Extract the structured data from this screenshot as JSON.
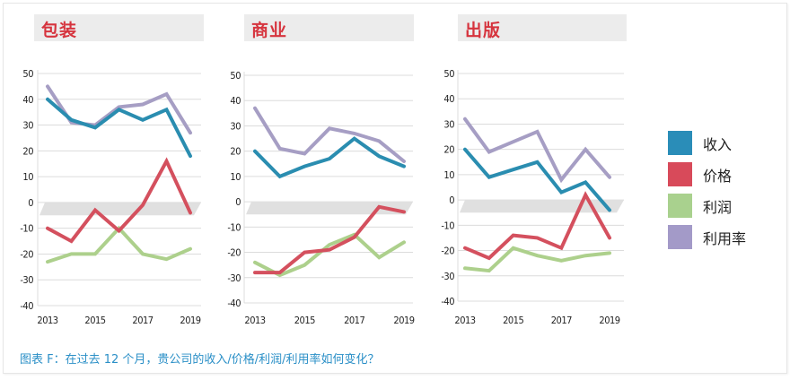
{
  "chart_data": [
    {
      "type": "line",
      "title": "包装",
      "x": [
        2013,
        2014,
        2015,
        2016,
        2017,
        2018,
        2019
      ],
      "xticks": [
        "2013",
        "2015",
        "2017",
        "2019"
      ],
      "yticks": [
        "50",
        "40",
        "30",
        "20",
        "10",
        "0",
        "-10",
        "-20",
        "-30",
        "-40"
      ],
      "ylim": [
        -40,
        50
      ],
      "grid": true,
      "series": [
        {
          "name": "收入",
          "values": [
            40,
            32,
            29,
            36,
            32,
            36,
            18
          ]
        },
        {
          "name": "价格",
          "values": [
            -10,
            -15,
            -3,
            -11,
            -1,
            16,
            -4
          ]
        },
        {
          "name": "利润",
          "values": [
            -23,
            -20,
            -20,
            -10,
            -20,
            -22,
            -18
          ]
        },
        {
          "name": "利用率",
          "values": [
            45,
            31,
            30,
            37,
            38,
            42,
            27
          ]
        }
      ]
    },
    {
      "type": "line",
      "title": "商业",
      "x": [
        2013,
        2014,
        2015,
        2016,
        2017,
        2018,
        2019
      ],
      "xticks": [
        "2013",
        "2015",
        "2017",
        "2019"
      ],
      "yticks": [
        "50",
        "40",
        "30",
        "20",
        "10",
        "0",
        "-10",
        "-20",
        "-30",
        "-40"
      ],
      "ylim": [
        -40,
        50
      ],
      "grid": true,
      "series": [
        {
          "name": "收入",
          "values": [
            20,
            10,
            14,
            17,
            25,
            18,
            14
          ]
        },
        {
          "name": "价格",
          "values": [
            -28,
            -28,
            -20,
            -19,
            -14,
            -2,
            -4
          ]
        },
        {
          "name": "利润",
          "values": [
            -24,
            -29,
            -25,
            -17,
            -13,
            -22,
            -16
          ]
        },
        {
          "name": "利用率",
          "values": [
            37,
            21,
            19,
            29,
            27,
            24,
            16
          ]
        }
      ]
    },
    {
      "type": "line",
      "title": "出版",
      "x": [
        2013,
        2014,
        2015,
        2016,
        2017,
        2018,
        2019
      ],
      "xticks": [
        "2013",
        "2015",
        "2017",
        "2019"
      ],
      "yticks": [
        "50",
        "40",
        "30",
        "20",
        "10",
        "0",
        "-10",
        "-20",
        "-30",
        "-40"
      ],
      "ylim": [
        -40,
        50
      ],
      "grid": true,
      "series": [
        {
          "name": "收入",
          "values": [
            20,
            9,
            12,
            15,
            3,
            7,
            -4
          ]
        },
        {
          "name": "价格",
          "values": [
            -19,
            -23,
            -14,
            -15,
            -19,
            2,
            -15
          ]
        },
        {
          "name": "利润",
          "values": [
            -27,
            -28,
            -19,
            -22,
            -24,
            -22,
            -21
          ]
        },
        {
          "name": "利用率",
          "values": [
            32,
            19,
            23,
            27,
            8,
            20,
            9
          ]
        }
      ]
    }
  ],
  "legend": {
    "placement": "right",
    "items": [
      {
        "label": "收入",
        "color": "#2a8db8"
      },
      {
        "label": "价格",
        "color": "#d84a5a"
      },
      {
        "label": "利润",
        "color": "#a9d18e"
      },
      {
        "label": "利用率",
        "color": "#a39ac8"
      }
    ]
  },
  "series_colors": {
    "收入": "#2a8db0",
    "价格": "#d4505e",
    "利润": "#add08c",
    "利用率": "#a69ec4"
  },
  "caption": "图表 F：在过去 12 个月，贵公司的收入/价格/利润/利用率如何变化？"
}
